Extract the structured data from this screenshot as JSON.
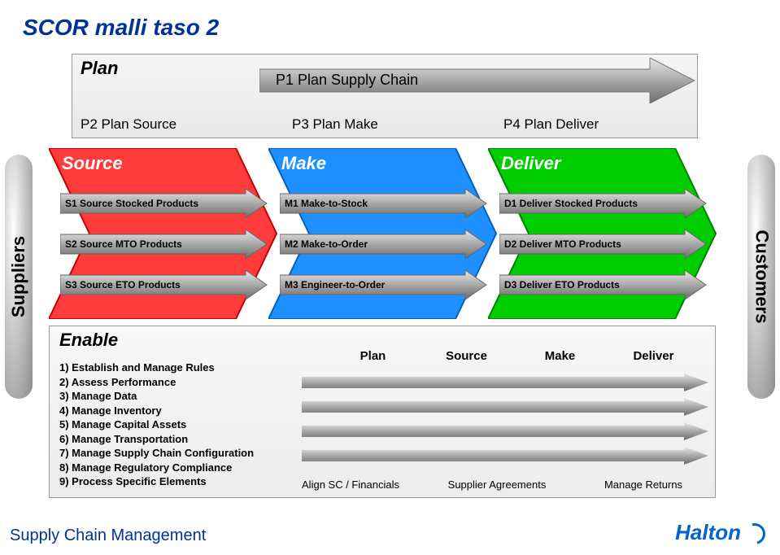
{
  "title": "SCOR malli taso 2",
  "side_labels": {
    "left": "Suppliers",
    "right": "Customers"
  },
  "plan": {
    "title": "Plan",
    "p1": "P1 Plan Supply Chain",
    "subs": [
      "P2 Plan Source",
      "P3 Plan Make",
      "P4 Plan Deliver"
    ]
  },
  "smd": {
    "source": {
      "title": "Source",
      "body_fill": "#ff3b3b",
      "body_stroke": "#c40000",
      "items": [
        "S1 Source Stocked Products",
        "S2 Source MTO Products",
        "S3 Source ETO Products"
      ]
    },
    "make": {
      "title": "Make",
      "body_fill": "#1e90ff",
      "body_stroke": "#0060c0",
      "items": [
        "M1 Make-to-Stock",
        "M2 Make-to-Order",
        "M3 Engineer-to-Order"
      ]
    },
    "deliver": {
      "title": "Deliver",
      "body_fill": "#00cc00",
      "body_stroke": "#008000",
      "items": [
        "D1 Deliver Stocked Products",
        "D2 Deliver MTO Products",
        "D3 Deliver ETO Products"
      ]
    }
  },
  "enable": {
    "title": "Enable",
    "list": [
      "1) Establish and Manage Rules",
      "2) Assess Performance",
      "3) Manage Data",
      "4) Manage Inventory",
      "5) Manage Capital Assets",
      "6) Manage Transportation",
      "7) Manage Supply Chain Configuration",
      "8) Manage Regulatory Compliance",
      "9) Process Specific Elements"
    ],
    "top_cols": [
      "Plan",
      "Source",
      "Make",
      "Deliver"
    ],
    "bottom_cols": [
      "Align SC / Financials",
      "Supplier Agreements",
      "Manage Returns"
    ]
  },
  "footer": {
    "left": "Supply Chain Management",
    "right": "Halton"
  },
  "style": {
    "arrow_grad_stops": [
      "#e8e8e8",
      "#a8a8a8",
      "#6b6b6b"
    ],
    "item_arrow_width": 228,
    "item_arrow_height": 26,
    "big_arrow_width": 280,
    "big_arrow_height": 210
  }
}
